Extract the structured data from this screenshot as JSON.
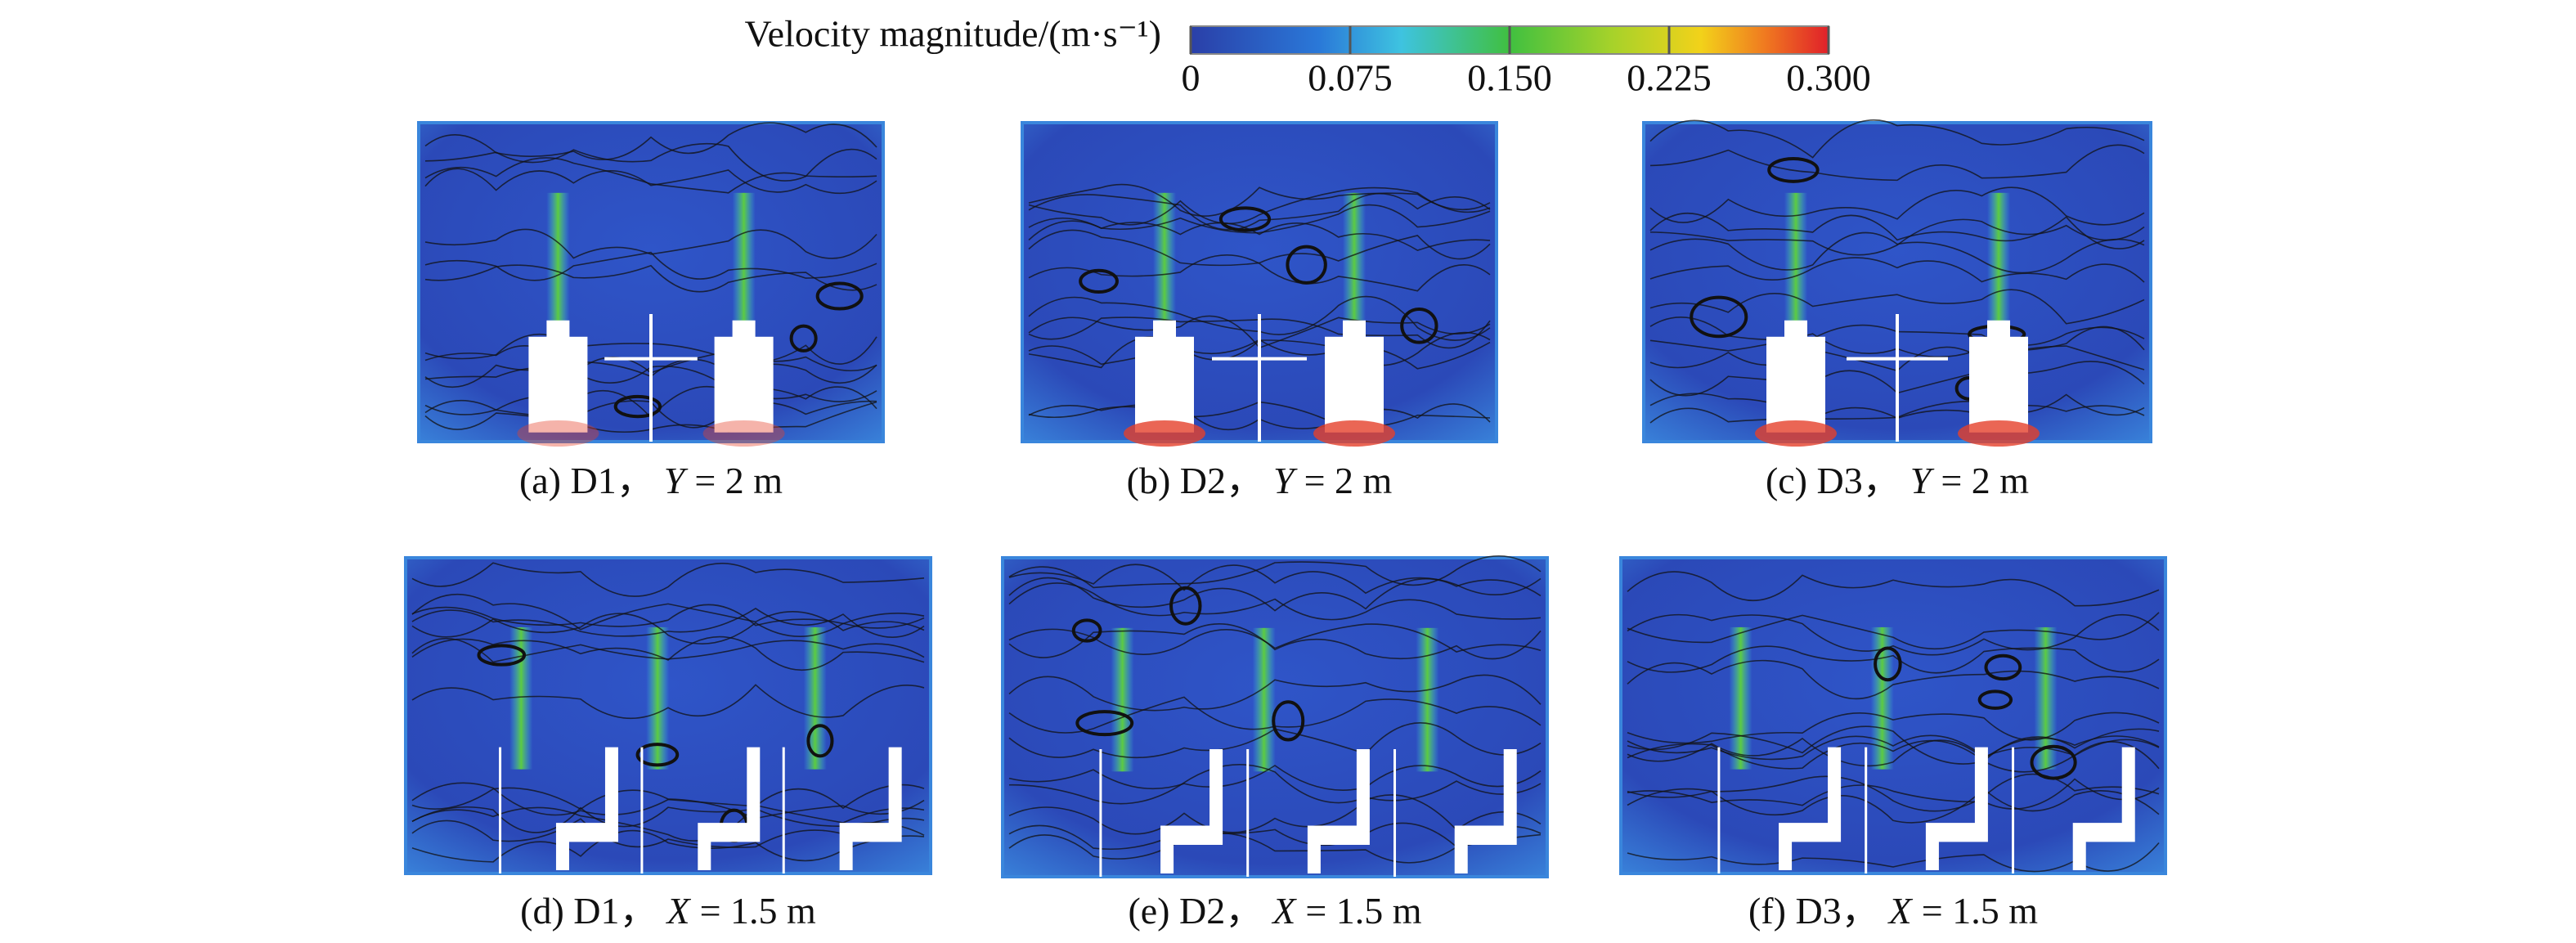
{
  "colorbar": {
    "title": "Velocity magnitude/(m·s⁻¹)",
    "clim": [
      0,
      0.3
    ],
    "ticks": [
      0,
      0.075,
      {
        "value": 0.15,
        "label": "0.150"
      },
      0.225,
      {
        "value": 0.3,
        "label": "0.300"
      }
    ]
  },
  "panels": [
    {
      "prefix": "(a) D1，",
      "var": "Y",
      "rest": "= 2 m"
    },
    {
      "prefix": "(b) D2，",
      "var": "Y",
      "rest": "= 2 m"
    },
    {
      "prefix": "(c) D3，",
      "var": "Y",
      "rest": "= 2 m"
    },
    {
      "prefix": "(d) D1，",
      "var": "X",
      "rest": "= 1.5 m"
    },
    {
      "prefix": "(e) D2，",
      "var": "X",
      "rest": "= 1.5 m"
    },
    {
      "prefix": "(f) D3，",
      "var": "X",
      "rest": "= 1.5 m"
    }
  ]
}
